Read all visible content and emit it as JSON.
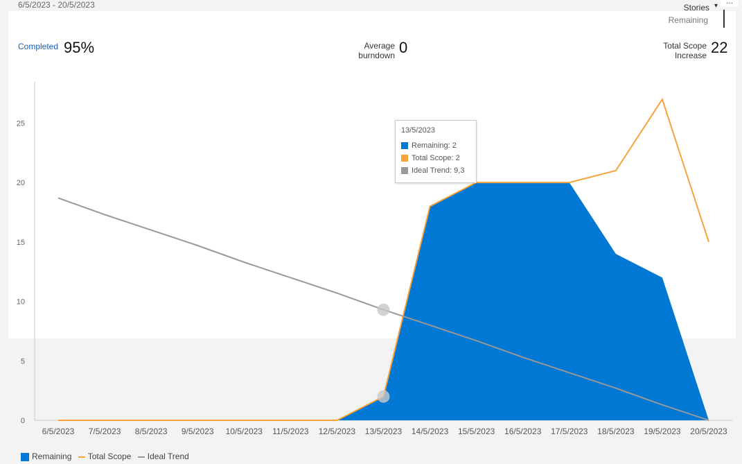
{
  "header": {
    "date_range": "6/5/2023 - 20/5/2023",
    "menu_label": "...",
    "dropdown": {
      "selected": "Stories",
      "option": "Remaining"
    }
  },
  "metrics": [
    {
      "label": "Completed",
      "value": "95%"
    },
    {
      "label": "Average burndown",
      "value": "0"
    },
    {
      "label": "Total Scope Increase",
      "value": "22"
    }
  ],
  "tooltip": {
    "date": "13/5/2023",
    "rows": [
      "Remaining: 2",
      "Total Scope: 2",
      "Ideal Trend: 9,3"
    ]
  },
  "colors": {
    "remaining": "#0078d4",
    "total_scope": "#f7a23b",
    "ideal_trend": "#999999",
    "hover_marker": "#c8c8c8"
  },
  "chart_data": {
    "type": "area",
    "title": "",
    "xlabel": "",
    "ylabel": "",
    "categories": [
      "6/5/2023",
      "7/5/2023",
      "8/5/2023",
      "9/5/2023",
      "10/5/2023",
      "11/5/2023",
      "12/5/2023",
      "13/5/2023",
      "14/5/2023",
      "15/5/2023",
      "16/5/2023",
      "17/5/2023",
      "18/5/2023",
      "19/5/2023",
      "20/5/2023"
    ],
    "ylim": [
      0,
      28
    ],
    "yticks": [
      0,
      5,
      10,
      15,
      20,
      25
    ],
    "grid": false,
    "legend": "bottom-left",
    "series": [
      {
        "name": "Remaining",
        "kind": "area",
        "values": [
          0,
          0,
          0,
          0,
          0,
          0,
          0,
          2,
          18,
          20,
          20,
          20,
          14,
          12,
          0
        ]
      },
      {
        "name": "Total Scope",
        "kind": "line",
        "values": [
          0,
          0,
          0,
          0,
          0,
          0,
          0,
          2,
          18,
          20,
          20,
          20,
          21,
          27,
          15
        ]
      },
      {
        "name": "Ideal Trend",
        "kind": "line",
        "values": [
          18.7,
          17.3,
          16.0,
          14.7,
          13.3,
          12.0,
          10.7,
          9.3,
          8.0,
          6.7,
          5.3,
          4.0,
          2.7,
          1.3,
          0
        ]
      }
    ]
  }
}
